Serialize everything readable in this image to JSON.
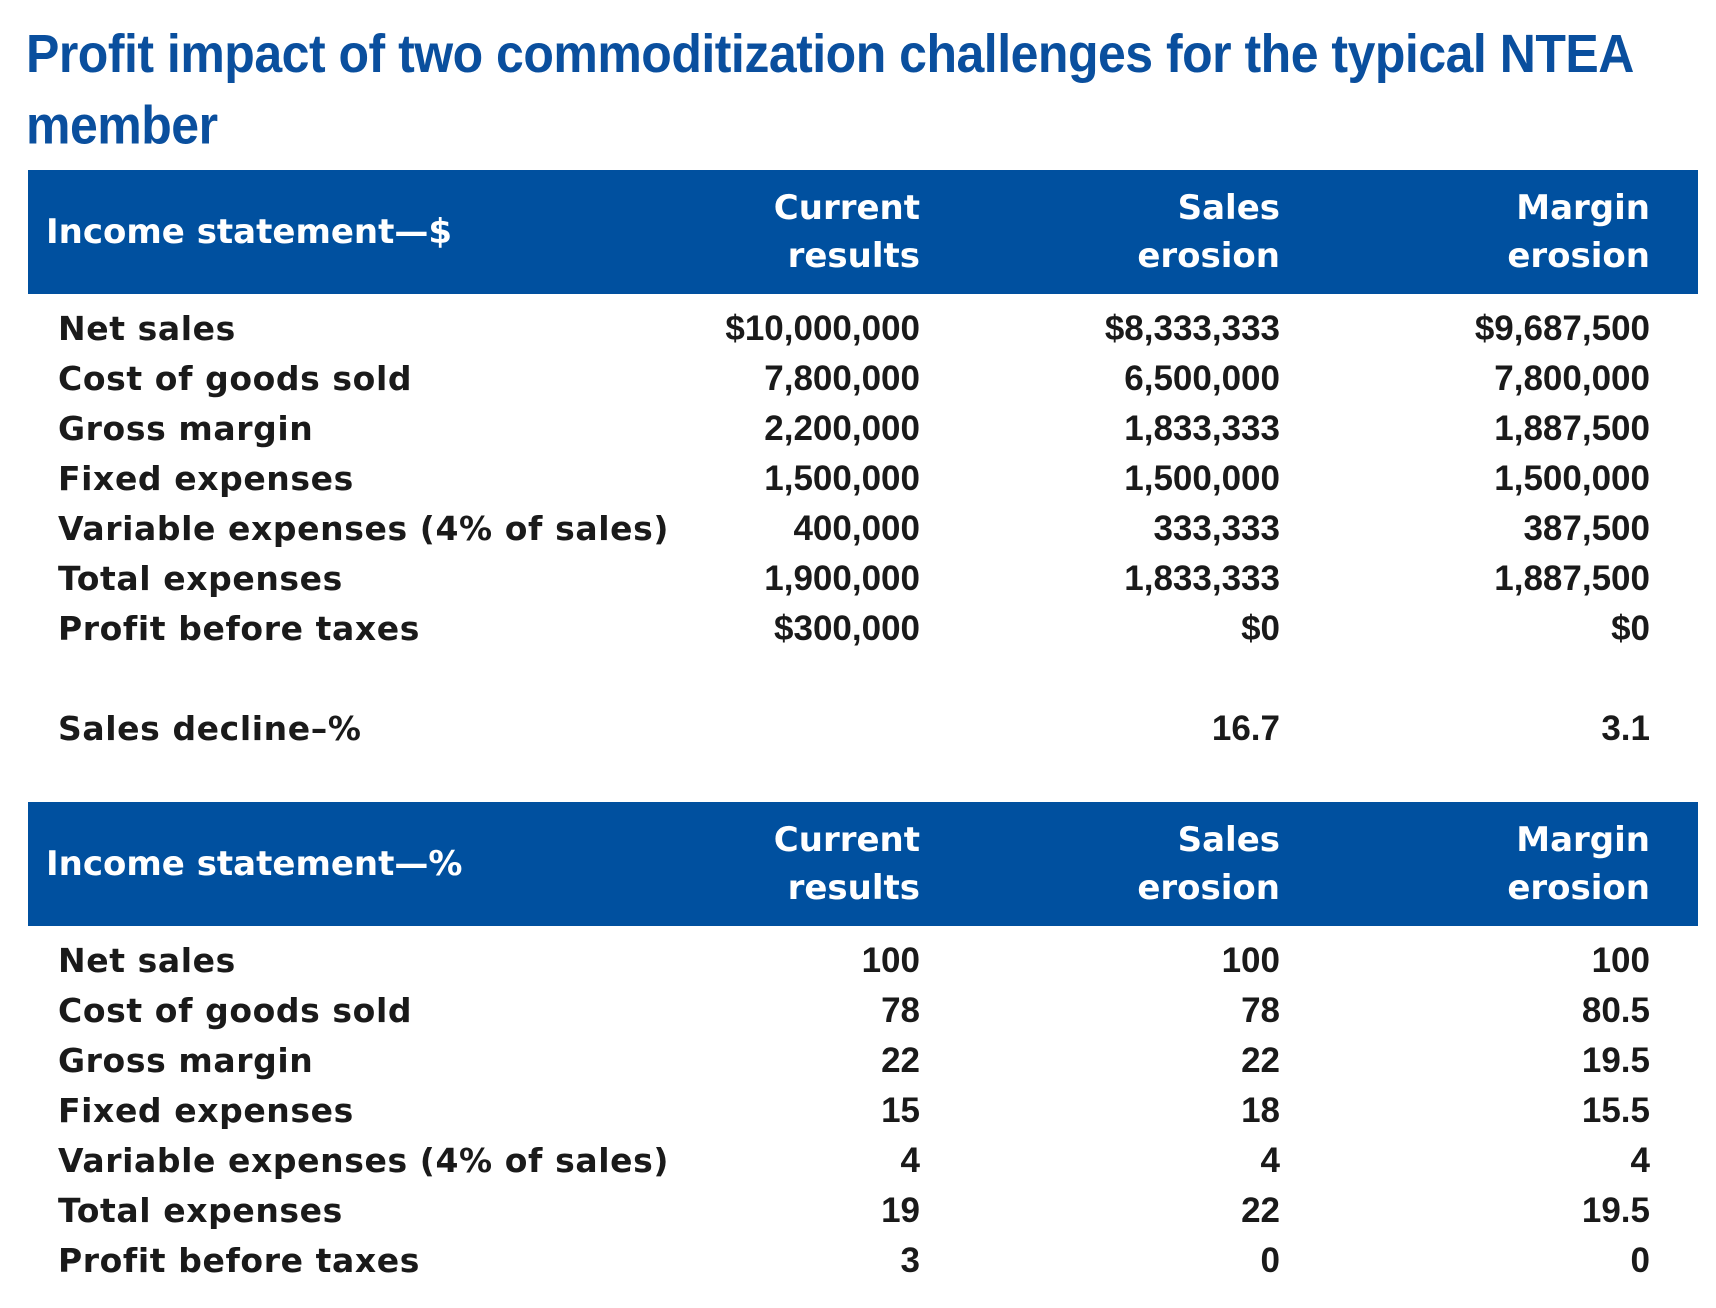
{
  "title": "Profit impact of two commoditization challenges for the typical NTEA member",
  "dollar_table": {
    "header": {
      "label": "Income statement—$",
      "col1": [
        "Current",
        "results"
      ],
      "col2": [
        "Sales",
        "erosion"
      ],
      "col3": [
        "Margin",
        "erosion"
      ]
    },
    "rows": [
      {
        "label": "Net sales",
        "v1": "$10,000,000",
        "v2": "$8,333,333",
        "v3": "$9,687,500"
      },
      {
        "label": "Cost of goods sold",
        "v1": "7,800,000",
        "v2": "6,500,000",
        "v3": "7,800,000"
      },
      {
        "label": "Gross margin",
        "v1": "2,200,000",
        "v2": "1,833,333",
        "v3": "1,887,500"
      },
      {
        "label": "Fixed expenses",
        "v1": "1,500,000",
        "v2": "1,500,000",
        "v3": "1,500,000"
      },
      {
        "label": "Variable expenses (4% of sales)",
        "v1": "400,000",
        "v2": "333,333",
        "v3": "387,500"
      },
      {
        "label": "Total expenses",
        "v1": "1,900,000",
        "v2": "1,833,333",
        "v3": "1,887,500"
      },
      {
        "label": "Profit before taxes",
        "v1": "$300,000",
        "v2": "$0",
        "v3": "$0"
      }
    ],
    "sales_decline": {
      "label": "Sales decline–%",
      "v1": "",
      "v2": "16.7",
      "v3": "3.1"
    }
  },
  "percent_table": {
    "header": {
      "label": "Income statement—%",
      "col1": [
        "Current",
        "results"
      ],
      "col2": [
        "Sales",
        "erosion"
      ],
      "col3": [
        "Margin",
        "erosion"
      ]
    },
    "rows": [
      {
        "label": "Net sales",
        "v1": "100",
        "v2": "100",
        "v3": "100"
      },
      {
        "label": "Cost of goods sold",
        "v1": "78",
        "v2": "78",
        "v3": "80.5"
      },
      {
        "label": "Gross margin",
        "v1": "22",
        "v2": "22",
        "v3": "19.5"
      },
      {
        "label": "Fixed expenses",
        "v1": "15",
        "v2": "18",
        "v3": "15.5"
      },
      {
        "label": "Variable expenses (4% of sales)",
        "v1": "4",
        "v2": "4",
        "v3": "4"
      },
      {
        "label": "Total expenses",
        "v1": "19",
        "v2": "22",
        "v3": "19.5"
      },
      {
        "label": "Profit before taxes",
        "v1": "3",
        "v2": "0",
        "v3": "0"
      }
    ]
  },
  "colors": {
    "accent": "#00509f",
    "title": "#0a4f9e",
    "text": "#1a1a1a"
  }
}
